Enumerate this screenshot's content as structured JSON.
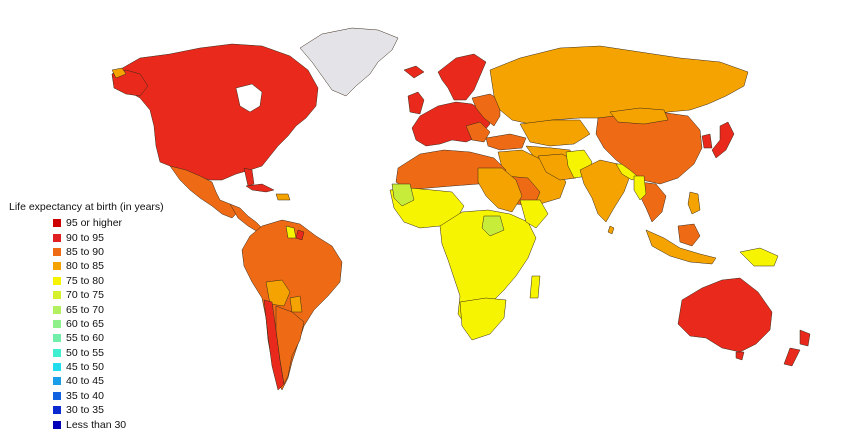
{
  "colors": {
    "band_95_plus": "#d7191c",
    "band_90_95": "#e8291c",
    "band_85_90": "#ee6a14",
    "band_80_85": "#f5a300",
    "band_75_80": "#f6f400",
    "band_70_75": "#c8ec3a",
    "no_data": "#e3e3e8",
    "ocean": "#ffffff",
    "borders": "#3a2a1a"
  },
  "legend": {
    "title": "Life expectancy at birth (in years)",
    "items": [
      {
        "label": "95 or higher",
        "color": "#cc0000"
      },
      {
        "label": "90 to 95",
        "color": "#e02020"
      },
      {
        "label": "85 to 90",
        "color": "#ee6a14"
      },
      {
        "label": "80 to 85",
        "color": "#f5a300"
      },
      {
        "label": "75 to 80",
        "color": "#f6f400"
      },
      {
        "label": "70 to 75",
        "color": "#d6f02c"
      },
      {
        "label": "65 to 70",
        "color": "#b2f060"
      },
      {
        "label": "60 to 65",
        "color": "#8ef08a"
      },
      {
        "label": "55 to 60",
        "color": "#70eeaa"
      },
      {
        "label": "50 to 55",
        "color": "#40eed0"
      },
      {
        "label": "45 to 50",
        "color": "#20dcec"
      },
      {
        "label": "40 to 45",
        "color": "#1a9ee8"
      },
      {
        "label": "35 to 40",
        "color": "#1060e0"
      },
      {
        "label": "30 to 35",
        "color": "#0a2ad0"
      },
      {
        "label": "Less than 30",
        "color": "#0000b8"
      }
    ]
  }
}
